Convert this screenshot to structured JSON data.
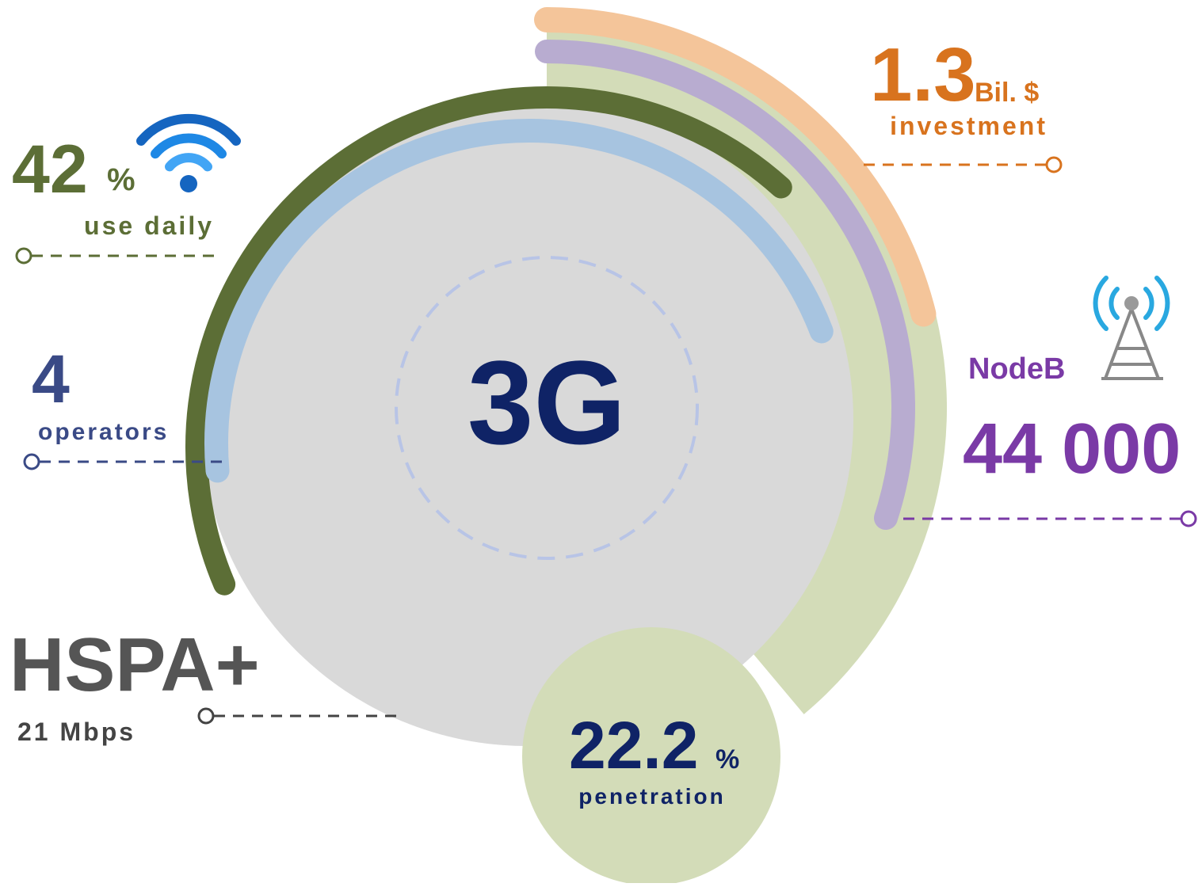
{
  "center": "3G",
  "stats": {
    "daily": {
      "value": "42",
      "unit": "%",
      "label": "use daily"
    },
    "operators": {
      "value": "4",
      "label": "operators"
    },
    "hspa": {
      "value": "HSPA+",
      "label": "21 Mbps"
    },
    "investment": {
      "value": "1.3",
      "unit": "Bil. $",
      "label": "investment"
    },
    "nodeb": {
      "label": "NodeB",
      "value": "44 000"
    },
    "penetration": {
      "value": "22.2",
      "unit": "%",
      "label": "penetration"
    }
  }
}
